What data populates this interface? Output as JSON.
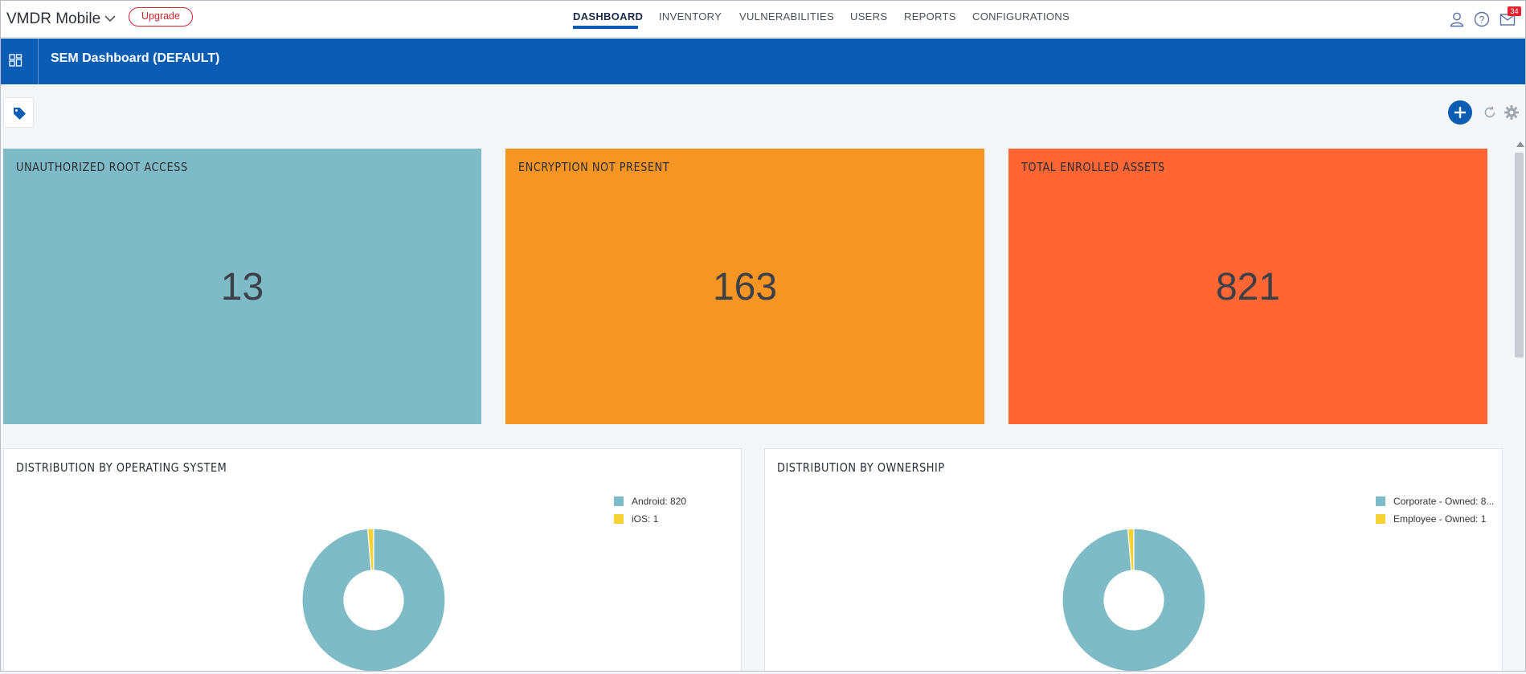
{
  "app": {
    "name": "VMDR Mobile",
    "upgrade_label": "Upgrade"
  },
  "nav": {
    "items": [
      {
        "label": "DASHBOARD",
        "active": true
      },
      {
        "label": "INVENTORY",
        "active": false
      },
      {
        "label": "VULNERABILITIES",
        "active": false
      },
      {
        "label": "USERS",
        "active": false
      },
      {
        "label": "REPORTS",
        "active": false
      },
      {
        "label": "CONFIGURATIONS",
        "active": false
      }
    ]
  },
  "header_icons": {
    "user": "user-icon",
    "help": "help-icon",
    "notifications": "mail-icon",
    "notification_count": "34"
  },
  "dashboard": {
    "title": "SEM Dashboard (DEFAULT)"
  },
  "stats": [
    {
      "title": "UNAUTHORIZED ROOT ACCESS",
      "value": "13",
      "color": "#7fbbc7"
    },
    {
      "title": "ENCRYPTION NOT PRESENT",
      "value": "163",
      "color": "#f79522"
    },
    {
      "title": "TOTAL ENROLLED ASSETS",
      "value": "821",
      "color": "#ff6633"
    }
  ],
  "chart_data": [
    {
      "type": "pie",
      "title": "DISTRIBUTION BY OPERATING SYSTEM",
      "categories": [
        "Android",
        "iOS"
      ],
      "values": [
        820,
        1
      ],
      "legend": [
        "Android: 820",
        "iOS: 1"
      ],
      "colors": [
        "#7fbbc7",
        "#f5d236"
      ],
      "legend_position": "top-right"
    },
    {
      "type": "pie",
      "title": "DISTRIBUTION BY OWNERSHIP",
      "categories": [
        "Corporate - Owned",
        "Employee - Owned"
      ],
      "values": [
        820,
        1
      ],
      "legend": [
        "Corporate - Owned: 8...",
        "Employee - Owned: 1"
      ],
      "colors": [
        "#7fbbc7",
        "#f5d236"
      ],
      "legend_position": "top-right"
    }
  ]
}
